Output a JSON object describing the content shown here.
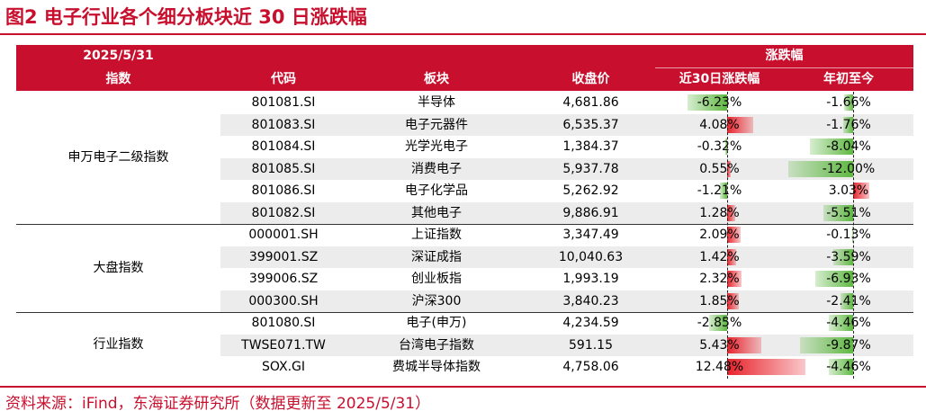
{
  "title": "图2  电子行业各个细分板块近 30 日涨跌幅",
  "header": {
    "date": "2025/5/31",
    "group_label": "涨跌幅",
    "columns": [
      "指数",
      "代码",
      "板块",
      "收盘价",
      "近30日涨跌幅",
      "年初至今"
    ]
  },
  "groups": [
    {
      "name": "申万电子二级指数",
      "rows": [
        {
          "code": "801081.SI",
          "sector": "半导体",
          "close": "4,681.86",
          "d30": "-6.23%",
          "d30_value": -6.23,
          "ytd": "-1.66%",
          "ytd_value": -1.66
        },
        {
          "code": "801083.SI",
          "sector": "电子元器件",
          "close": "6,535.37",
          "d30": "4.08%",
          "d30_value": 4.08,
          "ytd": "-1.76%",
          "ytd_value": -1.76
        },
        {
          "code": "801084.SI",
          "sector": "光学光电子",
          "close": "1,384.37",
          "d30": "-0.32%",
          "d30_value": -0.32,
          "ytd": "-8.04%",
          "ytd_value": -8.04
        },
        {
          "code": "801085.SI",
          "sector": "消费电子",
          "close": "5,937.78",
          "d30": "0.55%",
          "d30_value": 0.55,
          "ytd": "-12.00%",
          "ytd_value": -12.0
        },
        {
          "code": "801086.SI",
          "sector": "电子化学品",
          "close": "5,262.92",
          "d30": "-1.21%",
          "d30_value": -1.21,
          "ytd": "3.03%",
          "ytd_value": 3.03
        },
        {
          "code": "801082.SI",
          "sector": "其他电子",
          "close": "9,886.91",
          "d30": "1.28%",
          "d30_value": 1.28,
          "ytd": "-5.51%",
          "ytd_value": -5.51
        }
      ]
    },
    {
      "name": "大盘指数",
      "rows": [
        {
          "code": "000001.SH",
          "sector": "上证指数",
          "close": "3,347.49",
          "d30": "2.09%",
          "d30_value": 2.09,
          "ytd": "-0.13%",
          "ytd_value": -0.13
        },
        {
          "code": "399001.SZ",
          "sector": "深证成指",
          "close": "10,040.63",
          "d30": "1.42%",
          "d30_value": 1.42,
          "ytd": "-3.59%",
          "ytd_value": -3.59
        },
        {
          "code": "399006.SZ",
          "sector": "创业板指",
          "close": "1,993.19",
          "d30": "2.32%",
          "d30_value": 2.32,
          "ytd": "-6.93%",
          "ytd_value": -6.93
        },
        {
          "code": "000300.SH",
          "sector": "沪深300",
          "close": "3,840.23",
          "d30": "1.85%",
          "d30_value": 1.85,
          "ytd": "-2.41%",
          "ytd_value": -2.41
        }
      ]
    },
    {
      "name": "行业指数",
      "rows": [
        {
          "code": "801080.SI",
          "sector": "电子(申万)",
          "close": "4,234.59",
          "d30": "-2.85%",
          "d30_value": -2.85,
          "ytd": "-4.46%",
          "ytd_value": -4.46
        },
        {
          "code": "TWSE071.TW",
          "sector": "台湾电子指数",
          "close": "591.15",
          "d30": "5.43%",
          "d30_value": 5.43,
          "ytd": "-9.87%",
          "ytd_value": -9.87
        },
        {
          "code": "SOX.GI",
          "sector": "费城半导体指数",
          "close": "4,758.06",
          "d30": "12.48%",
          "d30_value": 12.48,
          "ytd": "-4.46%",
          "ytd_value": -4.46
        }
      ]
    }
  ],
  "colors": {
    "accent": "#c8102e",
    "positive": "#e8222b",
    "negative": "#5fb842",
    "shade": "#ececec"
  },
  "source": "资料来源：iFind，东海证券研究所（数据更新至 2025/5/31）"
}
